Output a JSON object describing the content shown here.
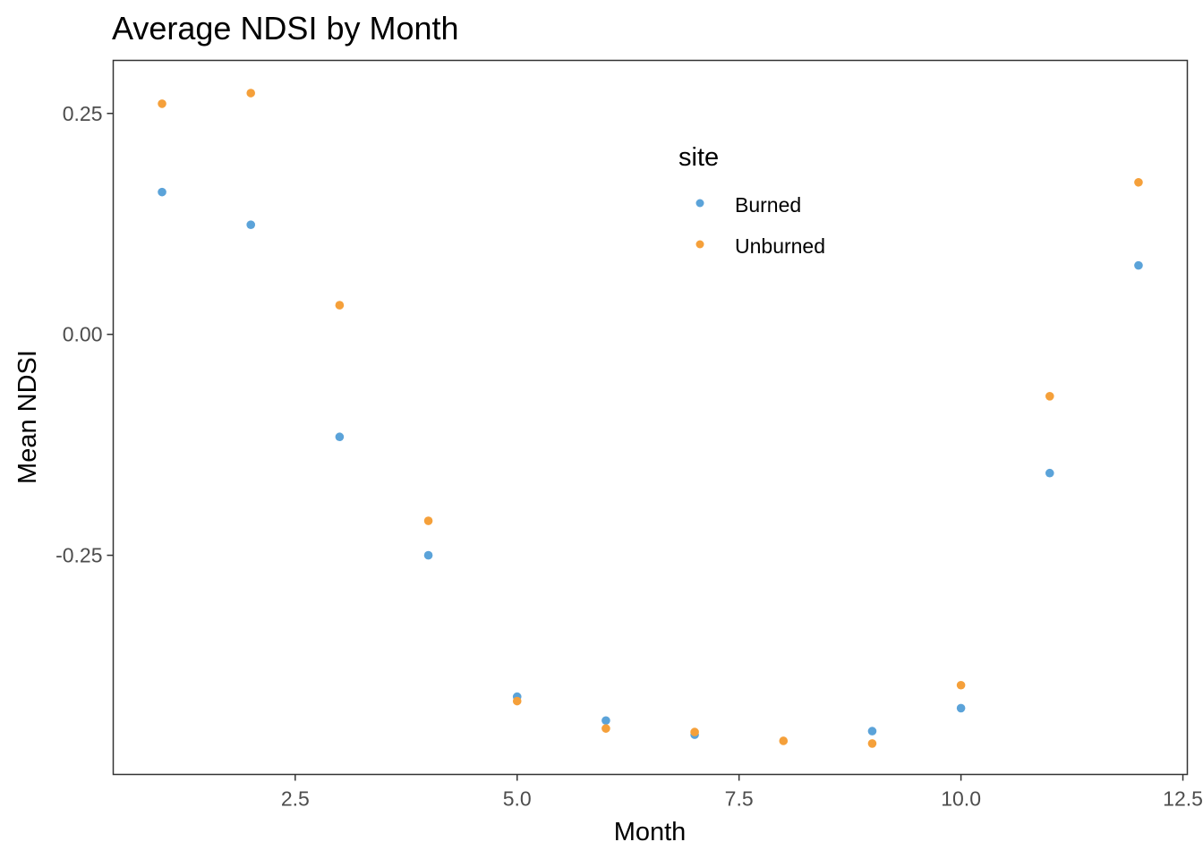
{
  "chart_data": {
    "type": "scatter",
    "title": "Average NDSI by Month",
    "xlabel": "Month",
    "ylabel": "Mean NDSI",
    "xlim": [
      0.45,
      12.55
    ],
    "ylim": [
      -0.498,
      0.31
    ],
    "x_ticks": [
      {
        "value": 2.5,
        "label": "2.5"
      },
      {
        "value": 5.0,
        "label": "5.0"
      },
      {
        "value": 7.5,
        "label": "7.5"
      },
      {
        "value": 10.0,
        "label": "10.0"
      },
      {
        "value": 12.5,
        "label": "12.5"
      }
    ],
    "y_ticks": [
      {
        "value": 0.25,
        "label": "0.25"
      },
      {
        "value": 0.0,
        "label": "0.00"
      },
      {
        "value": -0.25,
        "label": "-0.25"
      }
    ],
    "grid": false,
    "legend": {
      "title": "site",
      "position": "top-right (inside)"
    },
    "series": [
      {
        "name": "Burned",
        "color": "#5ba3d9",
        "x": [
          1,
          2,
          3,
          4,
          5,
          6,
          7,
          9,
          10,
          11,
          12
        ],
        "y": [
          0.161,
          0.124,
          -0.116,
          -0.25,
          -0.41,
          -0.437,
          -0.453,
          -0.449,
          -0.423,
          -0.157,
          0.078
        ]
      },
      {
        "name": "Unburned",
        "color": "#f5a03a",
        "x": [
          1,
          2,
          3,
          4,
          5,
          6,
          7,
          8,
          9,
          10,
          11,
          12
        ],
        "y": [
          0.261,
          0.273,
          0.033,
          -0.211,
          -0.415,
          -0.446,
          -0.45,
          -0.46,
          -0.463,
          -0.397,
          -0.07,
          0.172
        ]
      }
    ]
  }
}
